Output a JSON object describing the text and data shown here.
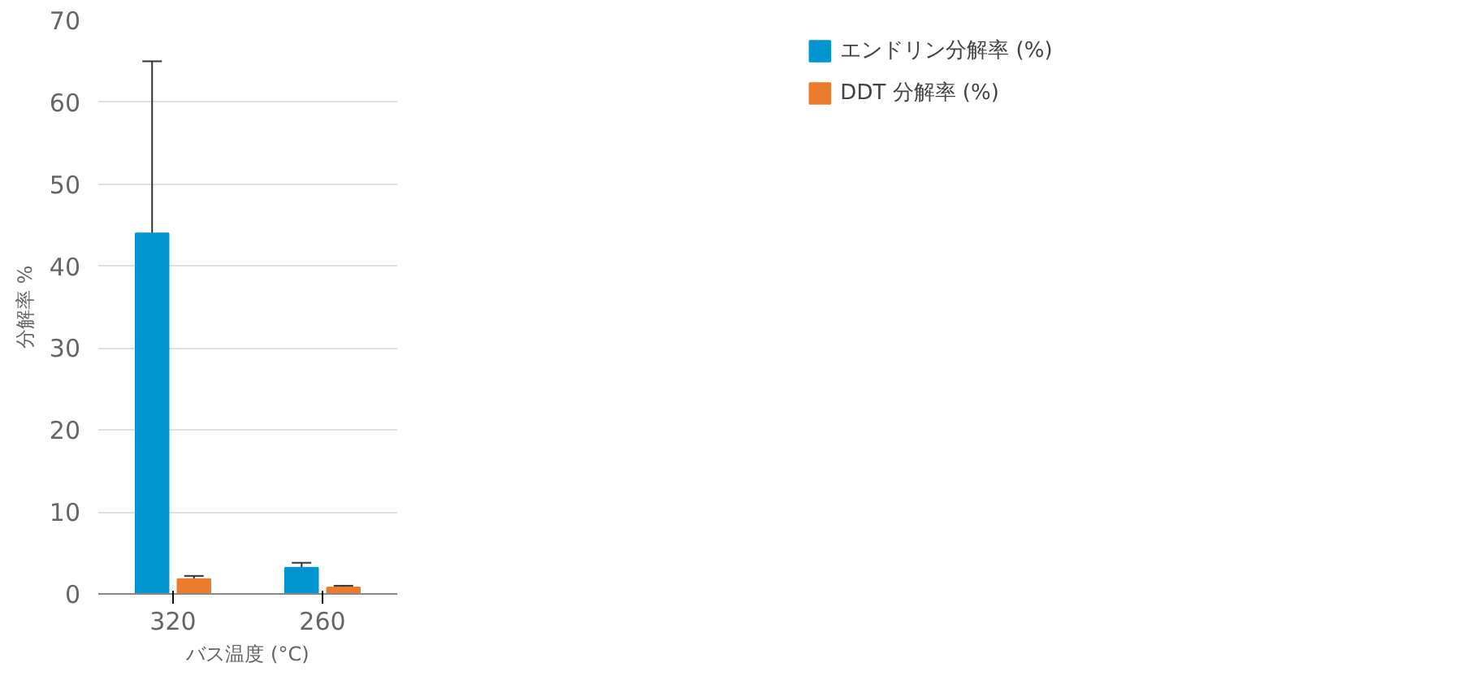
{
  "chart_data": {
    "type": "bar",
    "xlabel": "バス温度 (°C)",
    "ylabel": "分解率 %",
    "categories": [
      "320",
      "260"
    ],
    "series": [
      {
        "name": "エンドリン分解率 (%)",
        "color": "#0094d0",
        "values": [
          44,
          3.2
        ],
        "errors": [
          21,
          0.6
        ]
      },
      {
        "name": "DDT 分解率 (%)",
        "color": "#eb7b2d",
        "values": [
          1.8,
          0.8
        ],
        "errors": [
          0.4,
          0.2
        ]
      }
    ],
    "ylim": [
      0,
      70
    ],
    "yticks": [
      0,
      10,
      20,
      30,
      40,
      50,
      60,
      70
    ],
    "grid": "y",
    "legend": "top right"
  }
}
